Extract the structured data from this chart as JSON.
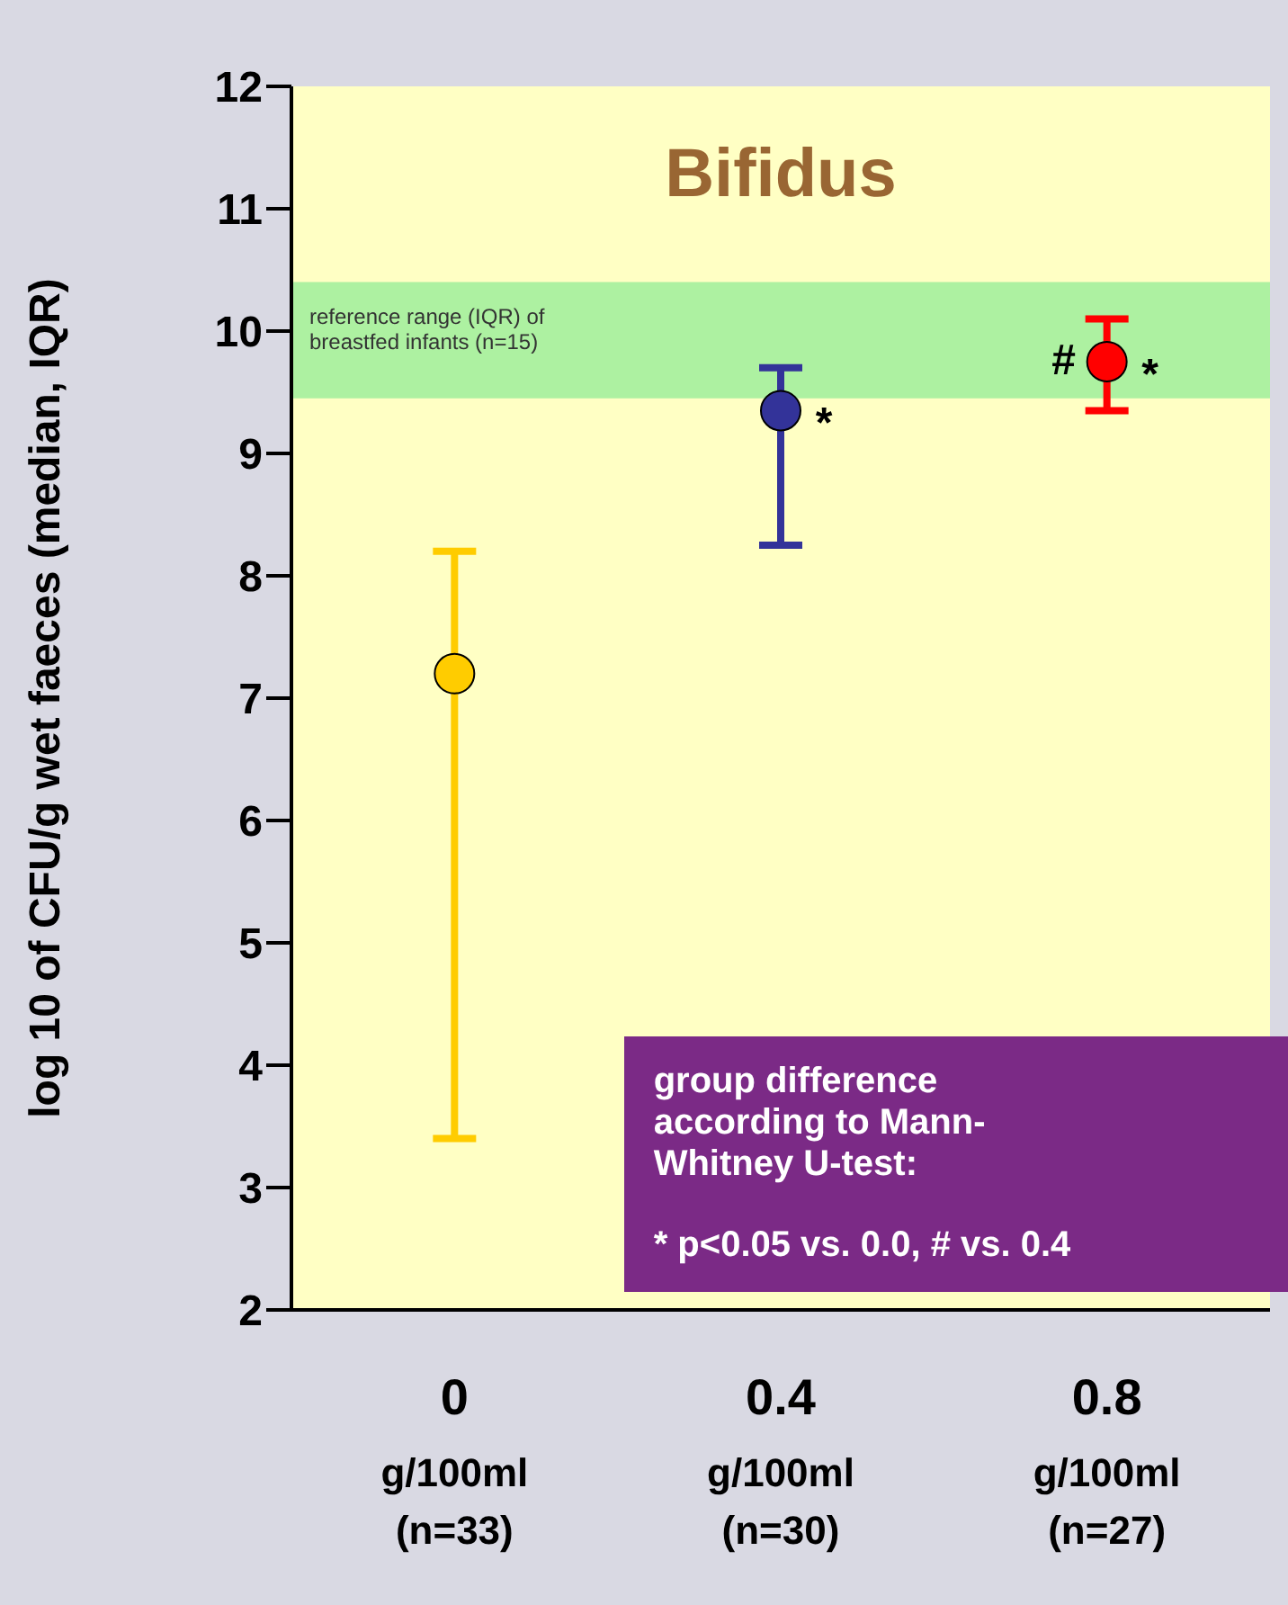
{
  "chart_data": {
    "type": "scatter",
    "title": "Bifidus",
    "ylabel": "log 10 of CFU/g wet faeces (median, IQR)",
    "categories": [
      "0\ng/100ml\n(n=33)",
      "0.4\ng/100ml\n(n=30)",
      "0.8\ng/100ml\n(n=27)"
    ],
    "values": [
      7.2,
      9.35,
      9.75
    ],
    "errors": [
      [
        3.4,
        8.2
      ],
      [
        8.25,
        9.7
      ],
      [
        9.35,
        10.1
      ]
    ],
    "colors": [
      "#ffcc00",
      "#333399",
      "#ff0000"
    ],
    "marker": "circle",
    "ylim": [
      2,
      12
    ],
    "yticks": [
      2,
      3,
      4,
      5,
      6,
      7,
      8,
      9,
      10,
      11,
      12
    ],
    "bands": [
      {
        "axis": "y",
        "from": 9.45,
        "to": 10.4,
        "label": "reference range (IQR) of breastfed infants (n=15)",
        "color": "#99ee99"
      }
    ],
    "annotations": [
      {
        "text": "*",
        "x": "0.4\ng/100ml\n(n=30)",
        "y": 9.35
      },
      {
        "text": "#",
        "x": "0.8\ng/100ml\n(n=27)",
        "y": 9.75
      },
      {
        "text": "*",
        "x": "0.8\ng/100ml\n(n=27)",
        "y": 9.75
      },
      "group difference according to Mann-Whitney U-test:",
      "* p<0.05 vs. 0.0, # vs. 0.4"
    ]
  }
}
